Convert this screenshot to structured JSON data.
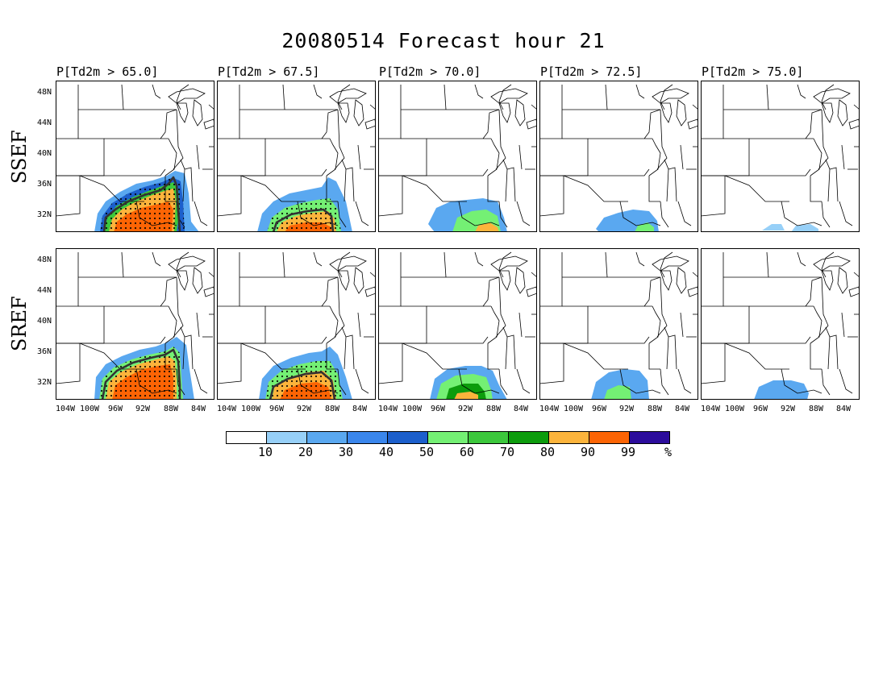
{
  "title": "20080514 Forecast hour 21",
  "columns": [
    {
      "label": "P[Td2m > 65.0]"
    },
    {
      "label": "P[Td2m > 67.5]"
    },
    {
      "label": "P[Td2m > 70.0]"
    },
    {
      "label": "P[Td2m > 72.5]"
    },
    {
      "label": "P[Td2m > 75.0]"
    }
  ],
  "rows": [
    {
      "label": "SSEF"
    },
    {
      "label": "SREF"
    }
  ],
  "y_axis_labels": [
    "48N",
    "44N",
    "40N",
    "36N",
    "32N"
  ],
  "x_axis_labels": [
    "104W",
    "100W",
    "96W",
    "92W",
    "88W",
    "84W"
  ],
  "colorbar": {
    "labels": [
      "10",
      "20",
      "30",
      "40",
      "50",
      "60",
      "70",
      "80",
      "90",
      "99",
      "%"
    ],
    "colors": [
      "#ffffff",
      "#97d0f8",
      "#5aa8f0",
      "#3a86ec",
      "#1c5fcc",
      "#74f074",
      "#3cc83c",
      "#0c9c0c",
      "#fcb43c",
      "#fc6404",
      "#2c0c9c"
    ]
  }
}
